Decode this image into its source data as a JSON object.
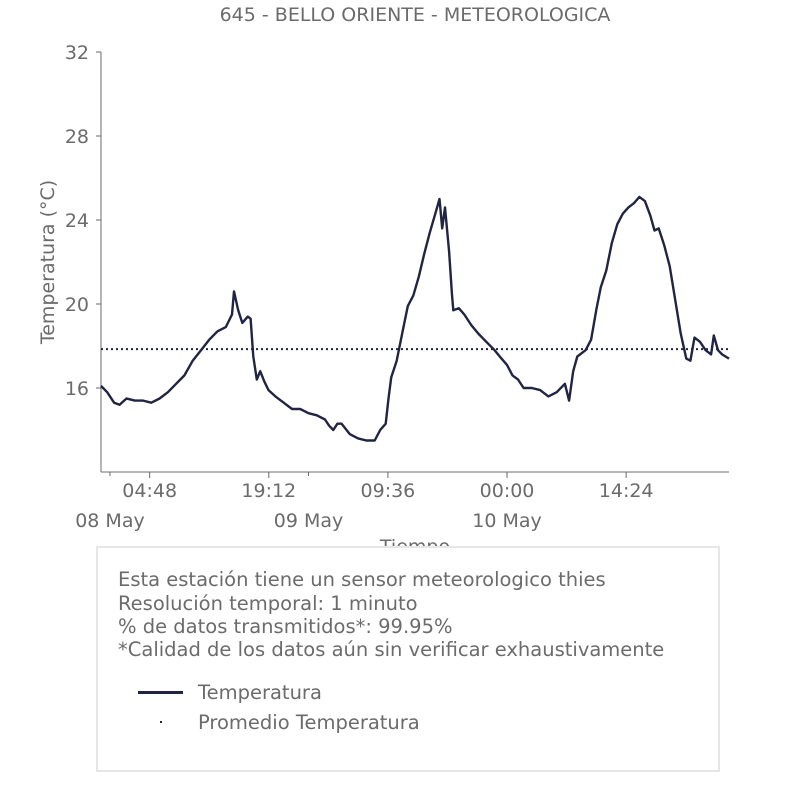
{
  "chart_data": {
    "type": "line",
    "title": "645 - BELLO ORIENTE - METEOROLOGICA",
    "xlabel": "Tiempo",
    "ylabel": "Temperatura (°C)",
    "ylim": [
      12,
      32
    ],
    "xlim": [
      "2024-05-07 22:55",
      "2024-05-11 02:50"
    ],
    "yticks": [
      16,
      20,
      24,
      28,
      32
    ],
    "xticks": [
      {
        "time": "2024-05-08 04:48",
        "label": "04:48",
        "date": "08 May"
      },
      {
        "time": "2024-05-08 19:12",
        "label": "19:12",
        "date": ""
      },
      {
        "time": "2024-05-09 09:36",
        "label": "09:36",
        "date": ""
      },
      {
        "time": "2024-05-10 00:00",
        "label": "00:00",
        "date": ""
      },
      {
        "time": "2024-05-10 14:24",
        "label": "14:24",
        "date": ""
      }
    ],
    "minor_xticks": [
      {
        "time": "2024-05-08 00:00",
        "date": "08 May"
      },
      {
        "time": "2024-05-09 00:00",
        "date": "09 May"
      },
      {
        "time": "2024-05-10 00:00",
        "date": "10 May"
      }
    ],
    "grid": false,
    "series": [
      {
        "name": "Temperatura",
        "color": "#212443",
        "points": [
          [
            "2024-05-07 22:55",
            16.1
          ],
          [
            "2024-05-07 23:40",
            15.8
          ],
          [
            "2024-05-08 00:30",
            15.3
          ],
          [
            "2024-05-08 01:10",
            15.2
          ],
          [
            "2024-05-08 02:00",
            15.5
          ],
          [
            "2024-05-08 03:00",
            15.4
          ],
          [
            "2024-05-08 04:00",
            15.4
          ],
          [
            "2024-05-08 05:00",
            15.3
          ],
          [
            "2024-05-08 06:00",
            15.5
          ],
          [
            "2024-05-08 07:00",
            15.8
          ],
          [
            "2024-05-08 08:00",
            16.2
          ],
          [
            "2024-05-08 09:00",
            16.6
          ],
          [
            "2024-05-08 10:00",
            17.3
          ],
          [
            "2024-05-08 11:00",
            17.8
          ],
          [
            "2024-05-08 12:00",
            18.3
          ],
          [
            "2024-05-08 13:00",
            18.7
          ],
          [
            "2024-05-08 14:00",
            18.9
          ],
          [
            "2024-05-08 14:45",
            19.5
          ],
          [
            "2024-05-08 15:00",
            20.6
          ],
          [
            "2024-05-08 15:30",
            19.7
          ],
          [
            "2024-05-08 16:00",
            19.1
          ],
          [
            "2024-05-08 16:40",
            19.4
          ],
          [
            "2024-05-08 17:00",
            19.3
          ],
          [
            "2024-05-08 17:20",
            17.5
          ],
          [
            "2024-05-08 17:45",
            16.4
          ],
          [
            "2024-05-08 18:10",
            16.8
          ],
          [
            "2024-05-08 18:40",
            16.3
          ],
          [
            "2024-05-08 19:10",
            15.9
          ],
          [
            "2024-05-08 20:00",
            15.6
          ],
          [
            "2024-05-08 21:00",
            15.3
          ],
          [
            "2024-05-08 22:00",
            15.0
          ],
          [
            "2024-05-08 23:00",
            15.0
          ],
          [
            "2024-05-09 00:00",
            14.8
          ],
          [
            "2024-05-09 01:00",
            14.7
          ],
          [
            "2024-05-09 02:00",
            14.5
          ],
          [
            "2024-05-09 02:30",
            14.2
          ],
          [
            "2024-05-09 03:00",
            14.0
          ],
          [
            "2024-05-09 03:30",
            14.3
          ],
          [
            "2024-05-09 04:00",
            14.3
          ],
          [
            "2024-05-09 05:00",
            13.8
          ],
          [
            "2024-05-09 06:00",
            13.6
          ],
          [
            "2024-05-09 07:00",
            13.5
          ],
          [
            "2024-05-09 08:00",
            13.5
          ],
          [
            "2024-05-09 08:40",
            14.0
          ],
          [
            "2024-05-09 09:20",
            14.3
          ],
          [
            "2024-05-09 09:40",
            15.5
          ],
          [
            "2024-05-09 10:00",
            16.5
          ],
          [
            "2024-05-09 10:40",
            17.3
          ],
          [
            "2024-05-09 11:20",
            18.6
          ],
          [
            "2024-05-09 12:00",
            19.9
          ],
          [
            "2024-05-09 12:40",
            20.4
          ],
          [
            "2024-05-09 13:20",
            21.3
          ],
          [
            "2024-05-09 14:00",
            22.4
          ],
          [
            "2024-05-09 14:40",
            23.4
          ],
          [
            "2024-05-09 15:20",
            24.3
          ],
          [
            "2024-05-09 15:50",
            25.0
          ],
          [
            "2024-05-09 16:10",
            23.6
          ],
          [
            "2024-05-09 16:30",
            24.6
          ],
          [
            "2024-05-09 17:00",
            22.5
          ],
          [
            "2024-05-09 17:20",
            20.5
          ],
          [
            "2024-05-09 17:30",
            19.7
          ],
          [
            "2024-05-09 18:10",
            19.8
          ],
          [
            "2024-05-09 18:50",
            19.5
          ],
          [
            "2024-05-09 19:40",
            19.0
          ],
          [
            "2024-05-09 20:30",
            18.6
          ],
          [
            "2024-05-09 21:30",
            18.2
          ],
          [
            "2024-05-09 22:30",
            17.8
          ],
          [
            "2024-05-09 23:20",
            17.4
          ],
          [
            "2024-05-10 00:00",
            17.1
          ],
          [
            "2024-05-10 00:40",
            16.6
          ],
          [
            "2024-05-10 01:20",
            16.4
          ],
          [
            "2024-05-10 02:00",
            16.0
          ],
          [
            "2024-05-10 03:00",
            16.0
          ],
          [
            "2024-05-10 04:00",
            15.9
          ],
          [
            "2024-05-10 05:00",
            15.6
          ],
          [
            "2024-05-10 06:00",
            15.8
          ],
          [
            "2024-05-10 07:00",
            16.2
          ],
          [
            "2024-05-10 07:30",
            15.4
          ],
          [
            "2024-05-10 08:00",
            16.8
          ],
          [
            "2024-05-10 08:30",
            17.5
          ],
          [
            "2024-05-10 09:30",
            17.8
          ],
          [
            "2024-05-10 10:10",
            18.3
          ],
          [
            "2024-05-10 10:50",
            19.8
          ],
          [
            "2024-05-10 11:20",
            20.8
          ],
          [
            "2024-05-10 12:00",
            21.6
          ],
          [
            "2024-05-10 12:40",
            22.9
          ],
          [
            "2024-05-10 13:20",
            23.8
          ],
          [
            "2024-05-10 14:00",
            24.3
          ],
          [
            "2024-05-10 14:40",
            24.6
          ],
          [
            "2024-05-10 15:20",
            24.8
          ],
          [
            "2024-05-10 16:00",
            25.1
          ],
          [
            "2024-05-10 16:40",
            24.9
          ],
          [
            "2024-05-10 17:20",
            24.2
          ],
          [
            "2024-05-10 17:50",
            23.5
          ],
          [
            "2024-05-10 18:20",
            23.6
          ],
          [
            "2024-05-10 19:00",
            22.8
          ],
          [
            "2024-05-10 19:40",
            21.8
          ],
          [
            "2024-05-10 20:20",
            20.2
          ],
          [
            "2024-05-10 21:00",
            18.6
          ],
          [
            "2024-05-10 21:40",
            17.4
          ],
          [
            "2024-05-10 22:10",
            17.3
          ],
          [
            "2024-05-10 22:40",
            18.4
          ],
          [
            "2024-05-10 23:20",
            18.2
          ],
          [
            "2024-05-11 00:00",
            17.8
          ],
          [
            "2024-05-11 00:40",
            17.6
          ],
          [
            "2024-05-11 01:00",
            18.5
          ],
          [
            "2024-05-11 01:30",
            17.8
          ],
          [
            "2024-05-11 02:00",
            17.6
          ],
          [
            "2024-05-11 02:50",
            17.4
          ]
        ]
      },
      {
        "name": "Promedio Temperatura",
        "color": "#212443",
        "style": "dotted",
        "value": 17.85
      }
    ]
  },
  "info": {
    "line1": "Esta estación tiene un sensor meteorologico thies",
    "line2": "Resolución temporal: 1 minuto",
    "line3": "% de datos transmitidos*: 99.95%",
    "line4": "*Calidad de los datos aún sin verificar exhaustivamente"
  },
  "legend": {
    "items": [
      {
        "label": "Temperatura",
        "symbol": "line"
      },
      {
        "label": "Promedio Temperatura",
        "symbol": "dot"
      }
    ]
  }
}
